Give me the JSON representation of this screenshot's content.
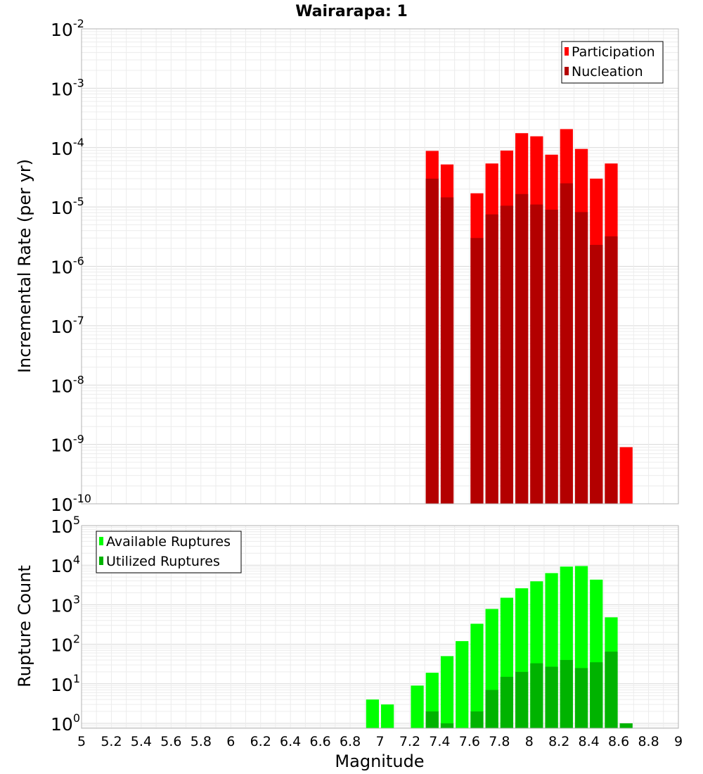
{
  "chart_data": [
    {
      "type": "bar",
      "title": "Wairarapa: 1",
      "xlabel": "Magnitude",
      "ylabel": "Incremental Rate (per yr)",
      "y_scale": "log",
      "ylim": [
        1e-10,
        0.01
      ],
      "xlim": [
        5,
        9
      ],
      "y_ticks": [
        {
          "base": "10",
          "exp": "-10"
        },
        {
          "base": "10",
          "exp": "-9"
        },
        {
          "base": "10",
          "exp": "-8"
        },
        {
          "base": "10",
          "exp": "-7"
        },
        {
          "base": "10",
          "exp": "-6"
        },
        {
          "base": "10",
          "exp": "-5"
        },
        {
          "base": "10",
          "exp": "-4"
        },
        {
          "base": "10",
          "exp": "-3"
        },
        {
          "base": "10",
          "exp": "-2"
        }
      ],
      "grid": true,
      "legend_position": "top-right",
      "series": [
        {
          "name": "Participation",
          "color": "#ff0000",
          "points": [
            {
              "x": 7.35,
              "y": 8.8e-05
            },
            {
              "x": 7.45,
              "y": 5.2e-05
            },
            {
              "x": 7.65,
              "y": 1.7e-05
            },
            {
              "x": 7.75,
              "y": 5.4e-05
            },
            {
              "x": 7.85,
              "y": 8.9e-05
            },
            {
              "x": 7.95,
              "y": 0.000175
            },
            {
              "x": 8.05,
              "y": 0.000155
            },
            {
              "x": 8.15,
              "y": 7.6e-05
            },
            {
              "x": 8.25,
              "y": 0.000205
            },
            {
              "x": 8.35,
              "y": 9.5e-05
            },
            {
              "x": 8.45,
              "y": 3e-05
            },
            {
              "x": 8.55,
              "y": 5.4e-05
            },
            {
              "x": 8.65,
              "y": 9e-10
            }
          ]
        },
        {
          "name": "Nucleation",
          "color": "#b30000",
          "points": [
            {
              "x": 7.35,
              "y": 3e-05
            },
            {
              "x": 7.45,
              "y": 1.45e-05
            },
            {
              "x": 7.65,
              "y": 3e-06
            },
            {
              "x": 7.75,
              "y": 7.5e-06
            },
            {
              "x": 7.85,
              "y": 1.05e-05
            },
            {
              "x": 7.95,
              "y": 1.65e-05
            },
            {
              "x": 8.05,
              "y": 1.1e-05
            },
            {
              "x": 8.15,
              "y": 9e-06
            },
            {
              "x": 8.25,
              "y": 2.5e-05
            },
            {
              "x": 8.35,
              "y": 8.2e-06
            },
            {
              "x": 8.45,
              "y": 2.3e-06
            },
            {
              "x": 8.55,
              "y": 3.2e-06
            }
          ]
        }
      ]
    },
    {
      "type": "bar",
      "xlabel": "Magnitude",
      "ylabel": "Rupture Count",
      "y_scale": "log",
      "ylim": [
        0.75,
        100000
      ],
      "xlim": [
        5,
        9
      ],
      "x_ticks": [
        "5",
        "5.2",
        "5.4",
        "5.6",
        "5.8",
        "6",
        "6.2",
        "6.4",
        "6.6",
        "6.8",
        "7",
        "7.2",
        "7.4",
        "7.6",
        "7.8",
        "8",
        "8.2",
        "8.4",
        "8.6",
        "8.8",
        "9"
      ],
      "y_ticks": [
        {
          "base": "10",
          "exp": "0"
        },
        {
          "base": "10",
          "exp": "1"
        },
        {
          "base": "10",
          "exp": "2"
        },
        {
          "base": "10",
          "exp": "3"
        },
        {
          "base": "10",
          "exp": "4"
        },
        {
          "base": "10",
          "exp": "5"
        }
      ],
      "grid": true,
      "legend_position": "top-left",
      "series": [
        {
          "name": "Available Ruptures",
          "color": "#00ff00",
          "points": [
            {
              "x": 6.95,
              "y": 4
            },
            {
              "x": 7.05,
              "y": 3
            },
            {
              "x": 7.25,
              "y": 9
            },
            {
              "x": 7.35,
              "y": 19
            },
            {
              "x": 7.45,
              "y": 50
            },
            {
              "x": 7.55,
              "y": 120
            },
            {
              "x": 7.65,
              "y": 330
            },
            {
              "x": 7.75,
              "y": 780
            },
            {
              "x": 7.85,
              "y": 1500
            },
            {
              "x": 7.95,
              "y": 2600
            },
            {
              "x": 8.05,
              "y": 3900
            },
            {
              "x": 8.15,
              "y": 6300
            },
            {
              "x": 8.25,
              "y": 9200
            },
            {
              "x": 8.35,
              "y": 9500
            },
            {
              "x": 8.45,
              "y": 4300
            },
            {
              "x": 8.55,
              "y": 480
            }
          ]
        },
        {
          "name": "Utilized Ruptures",
          "color": "#00b300",
          "points": [
            {
              "x": 7.35,
              "y": 2
            },
            {
              "x": 7.45,
              "y": 1
            },
            {
              "x": 7.65,
              "y": 2
            },
            {
              "x": 7.75,
              "y": 7
            },
            {
              "x": 7.85,
              "y": 15
            },
            {
              "x": 7.95,
              "y": 20
            },
            {
              "x": 8.05,
              "y": 33
            },
            {
              "x": 8.15,
              "y": 27
            },
            {
              "x": 8.25,
              "y": 40
            },
            {
              "x": 8.35,
              "y": 25
            },
            {
              "x": 8.45,
              "y": 35
            },
            {
              "x": 8.55,
              "y": 65
            },
            {
              "x": 8.65,
              "y": 1
            }
          ]
        }
      ]
    }
  ]
}
